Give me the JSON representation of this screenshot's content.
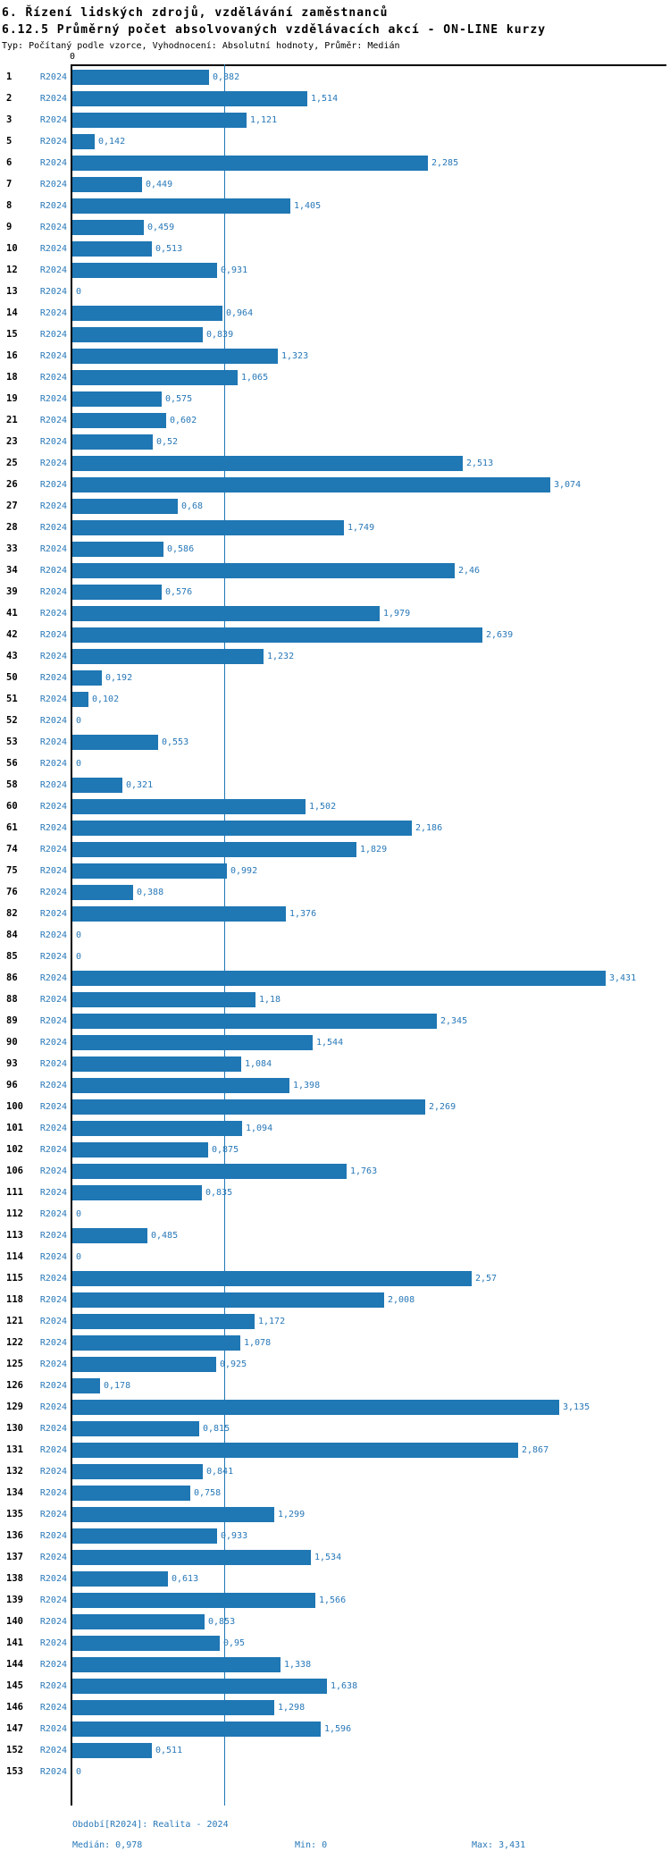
{
  "header": {
    "title": "6. Řízení lidských zdrojů, vzdělávání zaměstnanců",
    "subtitle": "6.12.5 Průměrný počet absolvovaných vzdělávacích akcí - ON-LINE kurzy",
    "meta": "Typ: Počítaný podle vzorce, Vyhodnocení: Absolutní hodnoty, Průměr: Medián"
  },
  "chart_data": {
    "type": "bar",
    "orientation": "horizontal",
    "title": "6.12.5 Průměrný počet absolvovaných vzdělávacích akcí - ON-LINE kurzy",
    "xlabel": "",
    "ylabel": "",
    "series_label": "R2024",
    "axis": {
      "origin_label": "0",
      "xlim": [
        0,
        3.8
      ],
      "grid": false,
      "median_value": 0.978
    },
    "rows": [
      {
        "label": "1",
        "value": 0.882,
        "value_label": "0,882"
      },
      {
        "label": "2",
        "value": 1.514,
        "value_label": "1,514"
      },
      {
        "label": "3",
        "value": 1.121,
        "value_label": "1,121"
      },
      {
        "label": "5",
        "value": 0.142,
        "value_label": "0,142"
      },
      {
        "label": "6",
        "value": 2.285,
        "value_label": "2,285"
      },
      {
        "label": "7",
        "value": 0.449,
        "value_label": "0,449"
      },
      {
        "label": "8",
        "value": 1.405,
        "value_label": "1,405"
      },
      {
        "label": "9",
        "value": 0.459,
        "value_label": "0,459"
      },
      {
        "label": "10",
        "value": 0.513,
        "value_label": "0,513"
      },
      {
        "label": "12",
        "value": 0.931,
        "value_label": "0,931"
      },
      {
        "label": "13",
        "value": 0,
        "value_label": "0"
      },
      {
        "label": "14",
        "value": 0.964,
        "value_label": "0,964"
      },
      {
        "label": "15",
        "value": 0.839,
        "value_label": "0,839"
      },
      {
        "label": "16",
        "value": 1.323,
        "value_label": "1,323"
      },
      {
        "label": "18",
        "value": 1.065,
        "value_label": "1,065"
      },
      {
        "label": "19",
        "value": 0.575,
        "value_label": "0,575"
      },
      {
        "label": "21",
        "value": 0.602,
        "value_label": "0,602"
      },
      {
        "label": "23",
        "value": 0.52,
        "value_label": "0,52"
      },
      {
        "label": "25",
        "value": 2.513,
        "value_label": "2,513"
      },
      {
        "label": "26",
        "value": 3.074,
        "value_label": "3,074"
      },
      {
        "label": "27",
        "value": 0.68,
        "value_label": "0,68"
      },
      {
        "label": "28",
        "value": 1.749,
        "value_label": "1,749"
      },
      {
        "label": "33",
        "value": 0.586,
        "value_label": "0,586"
      },
      {
        "label": "34",
        "value": 2.46,
        "value_label": "2,46"
      },
      {
        "label": "39",
        "value": 0.576,
        "value_label": "0,576"
      },
      {
        "label": "41",
        "value": 1.979,
        "value_label": "1,979"
      },
      {
        "label": "42",
        "value": 2.639,
        "value_label": "2,639"
      },
      {
        "label": "43",
        "value": 1.232,
        "value_label": "1,232"
      },
      {
        "label": "50",
        "value": 0.192,
        "value_label": "0,192"
      },
      {
        "label": "51",
        "value": 0.102,
        "value_label": "0,102"
      },
      {
        "label": "52",
        "value": 0,
        "value_label": "0"
      },
      {
        "label": "53",
        "value": 0.553,
        "value_label": "0,553"
      },
      {
        "label": "56",
        "value": 0,
        "value_label": "0"
      },
      {
        "label": "58",
        "value": 0.321,
        "value_label": "0,321"
      },
      {
        "label": "60",
        "value": 1.502,
        "value_label": "1,502"
      },
      {
        "label": "61",
        "value": 2.186,
        "value_label": "2,186"
      },
      {
        "label": "74",
        "value": 1.829,
        "value_label": "1,829"
      },
      {
        "label": "75",
        "value": 0.992,
        "value_label": "0,992"
      },
      {
        "label": "76",
        "value": 0.388,
        "value_label": "0,388"
      },
      {
        "label": "82",
        "value": 1.376,
        "value_label": "1,376"
      },
      {
        "label": "84",
        "value": 0,
        "value_label": "0"
      },
      {
        "label": "85",
        "value": 0,
        "value_label": "0"
      },
      {
        "label": "86",
        "value": 3.431,
        "value_label": "3,431"
      },
      {
        "label": "88",
        "value": 1.18,
        "value_label": "1,18"
      },
      {
        "label": "89",
        "value": 2.345,
        "value_label": "2,345"
      },
      {
        "label": "90",
        "value": 1.544,
        "value_label": "1,544"
      },
      {
        "label": "93",
        "value": 1.084,
        "value_label": "1,084"
      },
      {
        "label": "96",
        "value": 1.398,
        "value_label": "1,398"
      },
      {
        "label": "100",
        "value": 2.269,
        "value_label": "2,269"
      },
      {
        "label": "101",
        "value": 1.094,
        "value_label": "1,094"
      },
      {
        "label": "102",
        "value": 0.875,
        "value_label": "0,875"
      },
      {
        "label": "106",
        "value": 1.763,
        "value_label": "1,763"
      },
      {
        "label": "111",
        "value": 0.835,
        "value_label": "0,835"
      },
      {
        "label": "112",
        "value": 0,
        "value_label": "0"
      },
      {
        "label": "113",
        "value": 0.485,
        "value_label": "0,485"
      },
      {
        "label": "114",
        "value": 0,
        "value_label": "0"
      },
      {
        "label": "115",
        "value": 2.57,
        "value_label": "2,57"
      },
      {
        "label": "118",
        "value": 2.008,
        "value_label": "2,008"
      },
      {
        "label": "121",
        "value": 1.172,
        "value_label": "1,172"
      },
      {
        "label": "122",
        "value": 1.078,
        "value_label": "1,078"
      },
      {
        "label": "125",
        "value": 0.925,
        "value_label": "0,925"
      },
      {
        "label": "126",
        "value": 0.178,
        "value_label": "0,178"
      },
      {
        "label": "129",
        "value": 3.135,
        "value_label": "3,135"
      },
      {
        "label": "130",
        "value": 0.815,
        "value_label": "0,815"
      },
      {
        "label": "131",
        "value": 2.867,
        "value_label": "2,867"
      },
      {
        "label": "132",
        "value": 0.841,
        "value_label": "0,841"
      },
      {
        "label": "134",
        "value": 0.758,
        "value_label": "0,758"
      },
      {
        "label": "135",
        "value": 1.299,
        "value_label": "1,299"
      },
      {
        "label": "136",
        "value": 0.933,
        "value_label": "0,933"
      },
      {
        "label": "137",
        "value": 1.534,
        "value_label": "1,534"
      },
      {
        "label": "138",
        "value": 0.613,
        "value_label": "0,613"
      },
      {
        "label": "139",
        "value": 1.566,
        "value_label": "1,566"
      },
      {
        "label": "140",
        "value": 0.853,
        "value_label": "0,853"
      },
      {
        "label": "141",
        "value": 0.95,
        "value_label": "0,95"
      },
      {
        "label": "144",
        "value": 1.338,
        "value_label": "1,338"
      },
      {
        "label": "145",
        "value": 1.638,
        "value_label": "1,638"
      },
      {
        "label": "146",
        "value": 1.298,
        "value_label": "1,298"
      },
      {
        "label": "147",
        "value": 1.596,
        "value_label": "1,596"
      },
      {
        "label": "152",
        "value": 0.511,
        "value_label": "0,511"
      },
      {
        "label": "153",
        "value": 0,
        "value_label": "0"
      }
    ]
  },
  "footer": {
    "period": "Období[R2024]: Realita - 2024",
    "median": "Medián: 0,978",
    "min": "Min: 0",
    "max": "Max: 3,431"
  },
  "colors": {
    "bar": "#1f77b4",
    "blue_text": "#2878b8",
    "median_line": "#1f77b4",
    "axis": "#000000"
  }
}
